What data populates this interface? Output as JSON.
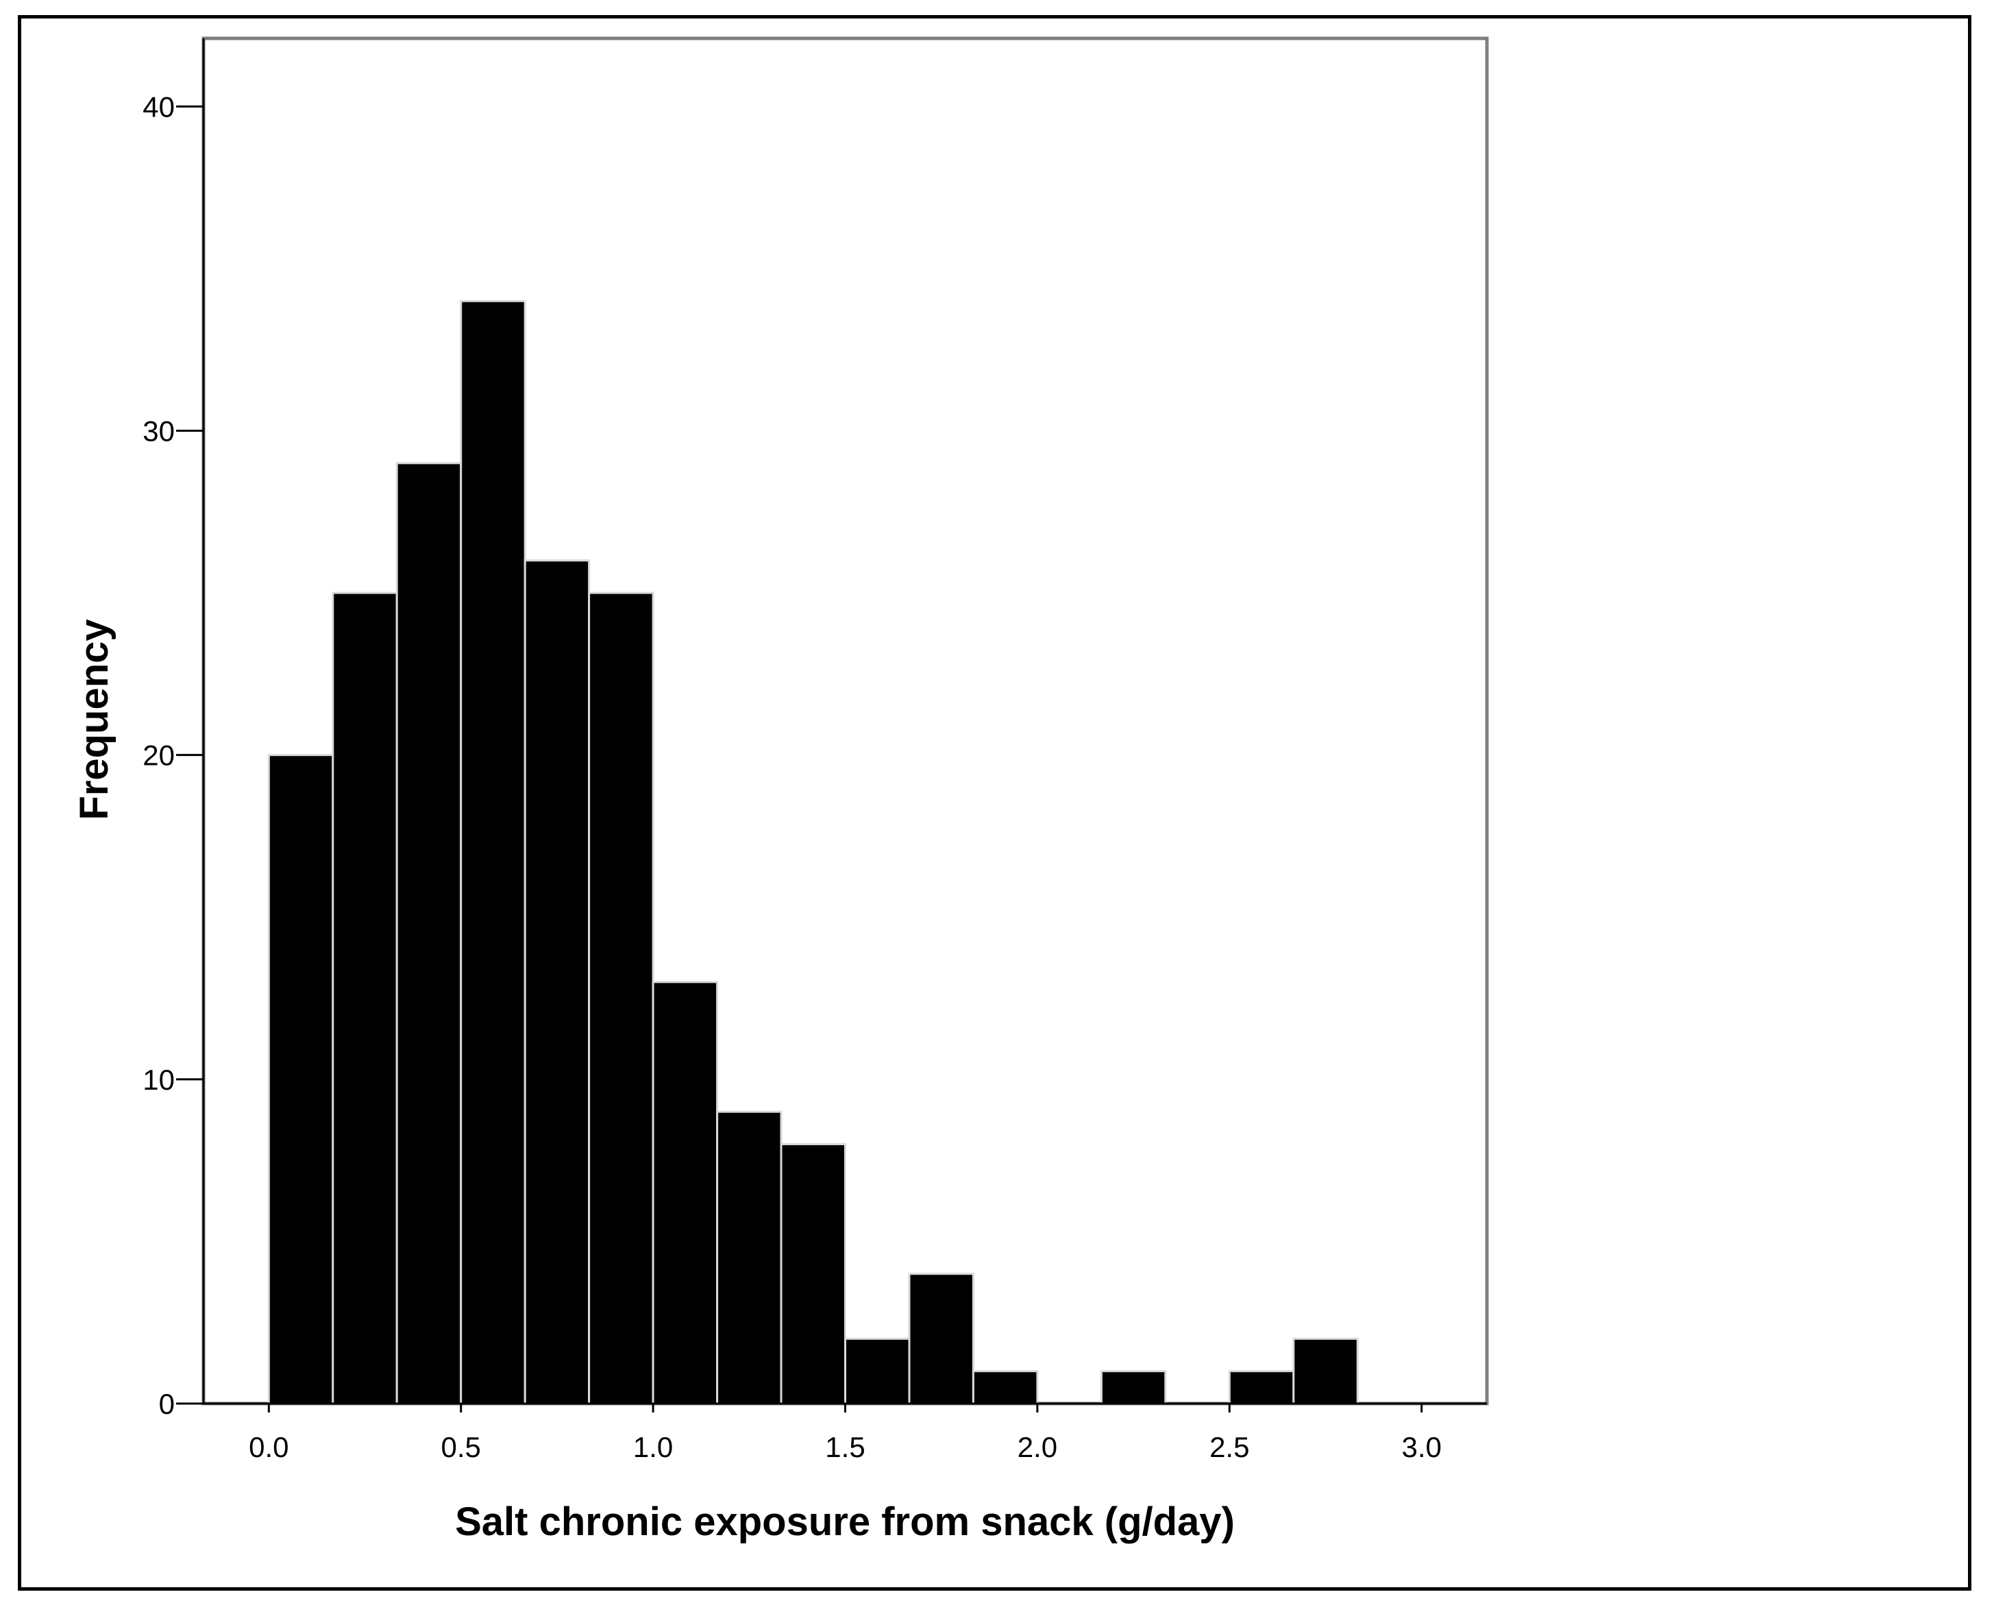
{
  "chart_data": {
    "type": "bar",
    "subtype": "histogram",
    "title": "",
    "xlabel": "Salt chronic exposure from snack (g/day)",
    "ylabel": "Frequency",
    "bin_width": 0.1667,
    "bins": [
      {
        "start": 0.0,
        "end": 0.1667,
        "count": 20
      },
      {
        "start": 0.1667,
        "end": 0.3333,
        "count": 25
      },
      {
        "start": 0.3333,
        "end": 0.5,
        "count": 29
      },
      {
        "start": 0.5,
        "end": 0.6667,
        "count": 34
      },
      {
        "start": 0.6667,
        "end": 0.8333,
        "count": 26
      },
      {
        "start": 0.8333,
        "end": 1.0,
        "count": 25
      },
      {
        "start": 1.0,
        "end": 1.1667,
        "count": 13
      },
      {
        "start": 1.1667,
        "end": 1.3333,
        "count": 9
      },
      {
        "start": 1.3333,
        "end": 1.5,
        "count": 8
      },
      {
        "start": 1.5,
        "end": 1.6667,
        "count": 2
      },
      {
        "start": 1.6667,
        "end": 1.8333,
        "count": 4
      },
      {
        "start": 1.8333,
        "end": 2.0,
        "count": 1
      },
      {
        "start": 2.0,
        "end": 2.1667,
        "count": 0
      },
      {
        "start": 2.1667,
        "end": 2.3333,
        "count": 1
      },
      {
        "start": 2.3333,
        "end": 2.5,
        "count": 0
      },
      {
        "start": 2.5,
        "end": 2.6667,
        "count": 1
      },
      {
        "start": 2.6667,
        "end": 2.8333,
        "count": 2
      }
    ],
    "xlim": [
      -0.17,
      3.17
    ],
    "ylim": [
      0,
      42.1
    ],
    "xticks": [
      0.0,
      0.5,
      1.0,
      1.5,
      2.0,
      2.5,
      3.0
    ],
    "xtick_labels": [
      "0.0",
      "0.5",
      "1.0",
      "1.5",
      "2.0",
      "2.5",
      "3.0"
    ],
    "yticks": [
      0,
      10,
      20,
      30,
      40
    ],
    "ytick_labels": [
      "0",
      "10",
      "20",
      "30",
      "40"
    ],
    "grid": false,
    "legend": "none",
    "colors": {
      "bar_fill": "#000000",
      "bar_edge": "#d9d9d9",
      "plot_border": "#7f7f7f",
      "background": "#ffffff"
    }
  }
}
